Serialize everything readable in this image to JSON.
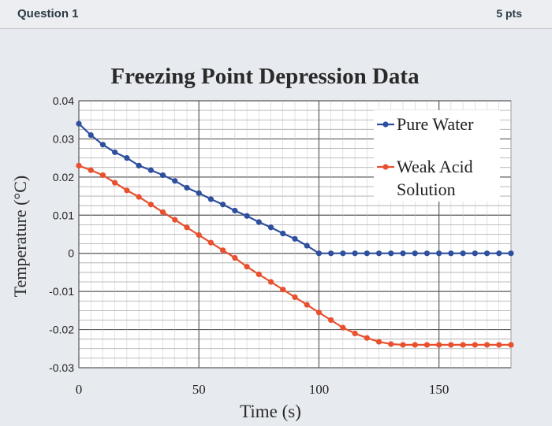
{
  "question": {
    "title": "Question 1",
    "points": "5 pts"
  },
  "chart_data": {
    "type": "line",
    "title": "Freezing Point Depression Data",
    "xlabel": "Time (s)",
    "ylabel": "Temperature (°C)",
    "xlim": [
      0,
      180
    ],
    "ylim": [
      -0.03,
      0.04
    ],
    "xticks": [
      0,
      50,
      100,
      150
    ],
    "xtick_labels": [
      "0",
      "50",
      "100",
      "150"
    ],
    "yticks": [
      0.04,
      0.03,
      0.02,
      0.01,
      0,
      -0.01,
      -0.02,
      -0.03
    ],
    "ytick_labels": [
      "0.04",
      "0.03",
      "0.02",
      "0.01",
      "0",
      "-0.01",
      "-0.02",
      "-0.03"
    ],
    "grid": true,
    "legend_position": "top-right",
    "series": [
      {
        "name": "Pure Water",
        "color": "#2e4f9e",
        "x": [
          0,
          5,
          10,
          15,
          20,
          25,
          30,
          35,
          40,
          45,
          50,
          55,
          60,
          65,
          70,
          75,
          80,
          85,
          90,
          95,
          100,
          105,
          110,
          115,
          120,
          125,
          130,
          135,
          140,
          145,
          150,
          155,
          160,
          165,
          170,
          175,
          180
        ],
        "y": [
          0.034,
          0.031,
          0.0285,
          0.0265,
          0.025,
          0.023,
          0.0218,
          0.0205,
          0.019,
          0.0172,
          0.0158,
          0.0142,
          0.0128,
          0.0112,
          0.0098,
          0.0082,
          0.0068,
          0.0052,
          0.0038,
          0.002,
          0.0,
          0.0,
          0.0,
          0.0,
          0.0,
          0.0,
          0.0,
          0.0,
          0.0,
          0.0,
          0.0,
          0.0,
          0.0,
          0.0,
          0.0,
          0.0,
          0.0
        ]
      },
      {
        "name": "Weak Acid Solution",
        "color": "#e8502e",
        "x": [
          0,
          5,
          10,
          15,
          20,
          25,
          30,
          35,
          40,
          45,
          50,
          55,
          60,
          65,
          70,
          75,
          80,
          85,
          90,
          95,
          100,
          105,
          110,
          115,
          120,
          125,
          130,
          135,
          140,
          145,
          150,
          155,
          160,
          165,
          170,
          175,
          180
        ],
        "y": [
          0.023,
          0.0218,
          0.0205,
          0.0185,
          0.0165,
          0.0148,
          0.0128,
          0.0108,
          0.0088,
          0.0068,
          0.0048,
          0.0028,
          0.0008,
          -0.0012,
          -0.0035,
          -0.0055,
          -0.0075,
          -0.0095,
          -0.0115,
          -0.0135,
          -0.0155,
          -0.0175,
          -0.0195,
          -0.021,
          -0.0222,
          -0.0232,
          -0.0238,
          -0.024,
          -0.024,
          -0.024,
          -0.024,
          -0.024,
          -0.024,
          -0.024,
          -0.024,
          -0.024,
          -0.024
        ]
      }
    ]
  }
}
